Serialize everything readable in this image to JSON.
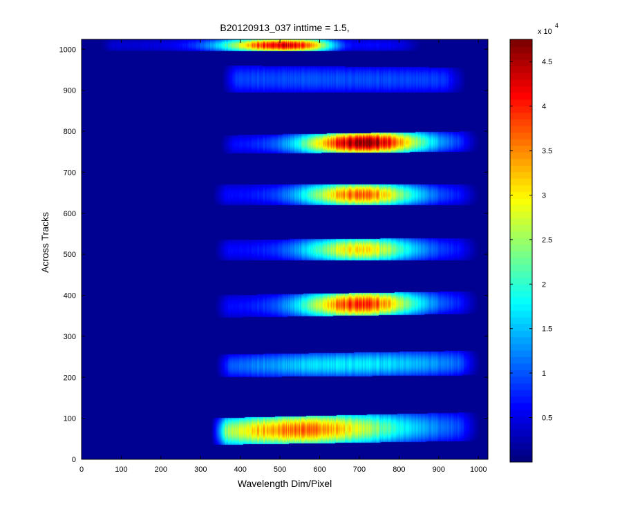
{
  "chart_data": {
    "type": "heatmap",
    "title": "B20120913_037 inttime = 1.5,",
    "xlabel": "Wavelength Dim/Pixel",
    "ylabel": "Across Tracks",
    "xlim": [
      0,
      1024
    ],
    "ylim": [
      0,
      1024
    ],
    "x_ticks": [
      0,
      100,
      200,
      300,
      400,
      500,
      600,
      700,
      800,
      900,
      1000
    ],
    "y_ticks": [
      0,
      100,
      200,
      300,
      400,
      500,
      600,
      700,
      800,
      900,
      1000
    ],
    "colorbar": {
      "colormap": "jet",
      "clim": [
        0,
        47500
      ],
      "exponent_label": "x 10",
      "exponent_power": "4",
      "tick_values": [
        0.5,
        1,
        1.5,
        2,
        2.5,
        3,
        3.5,
        4,
        4.5
      ],
      "tick_labels": [
        "0.5",
        "1",
        "1.5",
        "2",
        "2.5",
        "3",
        "3.5",
        "4",
        "4.5"
      ]
    },
    "background_value": 800,
    "bands": [
      {
        "x_start": 40,
        "x_end": 870,
        "y_bottom_start": 995,
        "y_top_start": 1024,
        "y_bottom_end": 995,
        "y_top_end": 1024,
        "peak_x": 505,
        "peak": 43000,
        "baseline": 4000,
        "width": 150,
        "dip_x": 680,
        "dip": 4000
      },
      {
        "x_start": 350,
        "x_end": 975,
        "y_bottom_start": 895,
        "y_top_start": 960,
        "y_bottom_end": 895,
        "y_top_end": 955,
        "peak_x": 620,
        "peak": 9500,
        "baseline": 7000,
        "width": 400
      },
      {
        "x_start": 345,
        "x_end": 1010,
        "y_bottom_start": 745,
        "y_top_start": 790,
        "y_bottom_end": 750,
        "y_top_end": 800,
        "peak_x": 710,
        "peak": 47000,
        "baseline": 6000,
        "width": 150
      },
      {
        "x_start": 325,
        "x_end": 1010,
        "y_bottom_start": 620,
        "y_top_start": 670,
        "y_bottom_end": 620,
        "y_top_end": 670,
        "peak_x": 700,
        "peak": 37000,
        "baseline": 6000,
        "width": 140
      },
      {
        "x_start": 330,
        "x_end": 1010,
        "y_bottom_start": 485,
        "y_top_start": 535,
        "y_bottom_end": 485,
        "y_top_end": 540,
        "peak_x": 700,
        "peak": 31000,
        "baseline": 6000,
        "width": 140
      },
      {
        "x_start": 330,
        "x_end": 1010,
        "y_bottom_start": 345,
        "y_top_start": 400,
        "y_bottom_end": 355,
        "y_top_end": 410,
        "peak_x": 700,
        "peak": 40000,
        "baseline": 6000,
        "width": 145
      },
      {
        "x_start": 335,
        "x_end": 1010,
        "y_bottom_start": 200,
        "y_top_start": 255,
        "y_bottom_end": 205,
        "y_top_end": 265,
        "peak_x": 680,
        "peak": 17000,
        "baseline": 6000,
        "width": 300
      },
      {
        "x_start": 325,
        "x_end": 1010,
        "y_bottom_start": 35,
        "y_top_start": 100,
        "y_bottom_end": 45,
        "y_top_end": 115,
        "peak_x": 550,
        "peak": 36000,
        "baseline": 7000,
        "width": 260
      }
    ]
  }
}
